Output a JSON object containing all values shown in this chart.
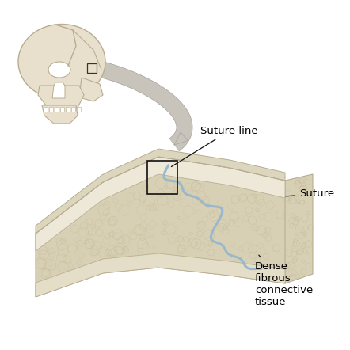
{
  "bg_color": "#ffffff",
  "bone_outer_color": "#ede8d8",
  "bone_inner_color": "#e8e2cc",
  "spongy_color": "#d8d0b4",
  "spongy_dark": "#c8bea0",
  "bone_edge_color": "#b8ad90",
  "bone_side_color": "#ddd6be",
  "bone_bottom_color": "#e4ddc8",
  "suture_color": "#9ab8cc",
  "skull_fill": "#e8e0cc",
  "skull_edge": "#b8ad90",
  "arrow_fill": "#c8c4bc",
  "arrow_edge": "#a8a49c",
  "label_suture_line": "Suture line",
  "label_suture": "Suture",
  "label_dense": "Dense\nfibrous\nconnective\ntissue",
  "line_color": "#111111",
  "font_size": 9.5,
  "fig_width": 4.42,
  "fig_height": 4.42,
  "dpi": 100
}
